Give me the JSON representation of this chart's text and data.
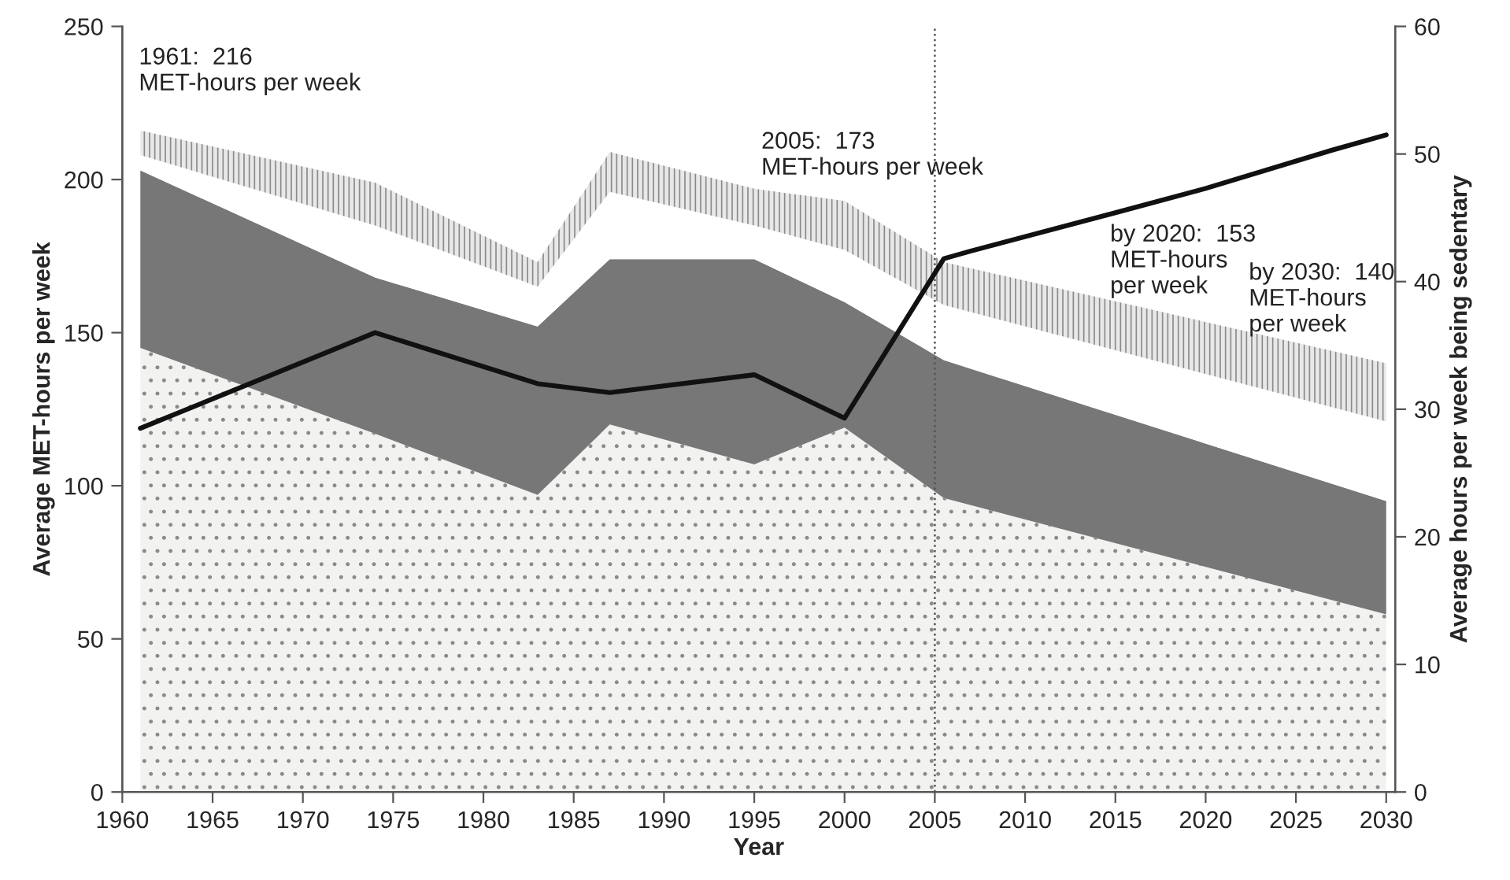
{
  "chart_data": {
    "type": "area",
    "stacked": true,
    "xlabel": "Year",
    "ylabel": "Average MET-hours per week",
    "y2label": "Average hours per week being sedentary",
    "x": [
      1961,
      1974,
      1983,
      1987,
      1995,
      2000,
      2005.5,
      2030
    ],
    "series": [
      {
        "color": "#f2f2f0",
        "values": [
          145,
          117,
          97,
          120,
          107,
          119,
          96,
          58
        ]
      },
      {
        "color": "#777777",
        "values": [
          58,
          51,
          55,
          54,
          67,
          41,
          45,
          37
        ]
      },
      {
        "color": "#ffffff",
        "values": [
          5,
          17,
          13,
          22,
          11,
          17,
          18,
          26
        ]
      },
      {
        "color": "#e8e8e8",
        "values": [
          8,
          14,
          8,
          13,
          12,
          16,
          14,
          19
        ]
      },
      {
        "type": "line",
        "axis": "y2",
        "color": "#111111",
        "x": [
          1961,
          1974,
          1983,
          1987,
          1995,
          2000,
          2005.5,
          2007,
          2015,
          2020,
          2027,
          2030
        ],
        "values": [
          28.5,
          36,
          32,
          31.3,
          32.7,
          29.3,
          41.8,
          42.4,
          45.4,
          47.3,
          50.3,
          51.5
        ]
      }
    ],
    "xlim": [
      1960,
      2030.5
    ],
    "xticks": [
      1960,
      1965,
      1970,
      1975,
      1980,
      1985,
      1990,
      1995,
      2000,
      2005,
      2010,
      2015,
      2020,
      2025,
      2030
    ],
    "ylim": [
      0,
      250
    ],
    "yticks": [
      0,
      50,
      100,
      150,
      200,
      250
    ],
    "y2lim": [
      0,
      60
    ],
    "y2ticks": [
      0,
      10,
      20,
      30,
      40,
      50,
      60
    ],
    "ref_lines": [
      {
        "axis": "x",
        "value": 2005,
        "line_style": "dotted",
        "color": "#555555"
      }
    ],
    "annotations": [
      "1961:  216\nMET-hours per week",
      "2005:  173\nMET-hours per week",
      "by 2020:  153\nMET-hours\nper week",
      "by 2030:  140\nMET-hours\nper week"
    ],
    "grid": false,
    "legend": false
  }
}
